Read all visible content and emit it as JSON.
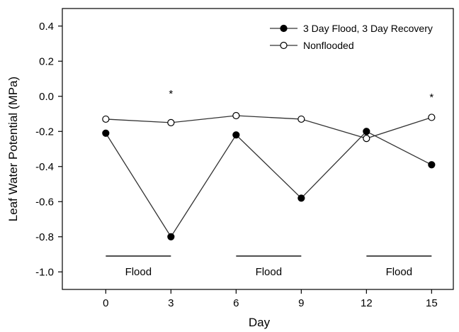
{
  "chart_data": {
    "type": "line",
    "xlabel": "Day",
    "ylabel": "Leaf Water Potential (MPa)",
    "xlim": [
      -2,
      16
    ],
    "ylim": [
      -1.1,
      0.5
    ],
    "xticks": [
      0,
      3,
      6,
      9,
      12,
      15
    ],
    "xtick_labels": [
      "0",
      "3",
      "6",
      "9",
      "12",
      "15"
    ],
    "yticks": [
      0.4,
      0.2,
      0.0,
      -0.2,
      -0.4,
      -0.6,
      -0.8,
      -1.0
    ],
    "ytick_labels": [
      "0.4",
      "0.2",
      "0.0",
      "-0.2",
      "-0.4",
      "-0.6",
      "-0.8",
      "-1.0"
    ],
    "legend_position": "top-right",
    "grid": false,
    "series": [
      {
        "name": "3 Day Flood, 3 Day Recovery",
        "marker": "filled-circle",
        "color": "#000000",
        "x": [
          0,
          3,
          6,
          9,
          12,
          15
        ],
        "values": [
          -0.21,
          -0.8,
          -0.22,
          -0.58,
          -0.2,
          -0.39
        ]
      },
      {
        "name": "Nonflooded",
        "marker": "open-circle",
        "color": "#000000",
        "x": [
          0,
          3,
          6,
          9,
          12,
          15
        ],
        "values": [
          -0.13,
          -0.15,
          -0.11,
          -0.13,
          -0.24,
          -0.12
        ]
      }
    ],
    "flood_periods": [
      {
        "label": "Flood",
        "x_start": 0,
        "x_end": 3,
        "y": -0.91
      },
      {
        "label": "Flood",
        "x_start": 6,
        "x_end": 9,
        "y": -0.91
      },
      {
        "label": "Flood",
        "x_start": 12,
        "x_end": 15,
        "y": -0.91
      }
    ],
    "annotations": [
      {
        "text": "*",
        "x": 3,
        "y": 0.02
      },
      {
        "text": "*",
        "x": 15,
        "y": 0.0
      }
    ]
  }
}
